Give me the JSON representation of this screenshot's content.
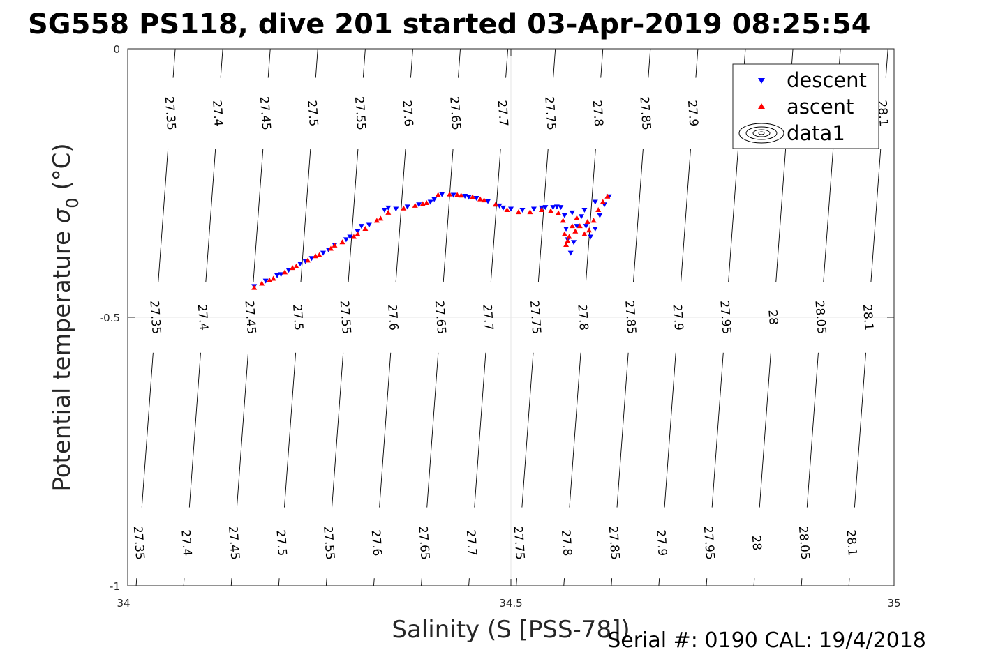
{
  "chart_data": {
    "type": "scatter",
    "title": "SG558 PS118, dive 201 started 03-Apr-2019 08:25:54",
    "xlabel": "Salinity (S [PSS-78])",
    "ylabel_main": "Potential temperature ",
    "ylabel_sigma": "σ",
    "ylabel_sub": "0",
    "ylabel_unit": " (°C)",
    "xlim": [
      34,
      35
    ],
    "ylim": [
      -1,
      0
    ],
    "xticks": [
      {
        "value": 34,
        "label": "34"
      },
      {
        "value": 34.5,
        "label": "34.5"
      },
      {
        "value": 35,
        "label": "35"
      }
    ],
    "yticks": [
      {
        "value": 0,
        "label": "0"
      },
      {
        "value": -0.5,
        "label": "-0.5"
      },
      {
        "value": -1,
        "label": "-1"
      }
    ],
    "grid": true,
    "legend_position": "top-right",
    "legend": [
      "descent",
      "ascent",
      "data1"
    ],
    "isopycnals": [
      {
        "label": "27.35",
        "s_top": 34.062,
        "s_bottom": 34.011
      },
      {
        "label": "27.4",
        "s_top": 34.124,
        "s_bottom": 34.073
      },
      {
        "label": "27.45",
        "s_top": 34.186,
        "s_bottom": 34.135
      },
      {
        "label": "27.5",
        "s_top": 34.248,
        "s_bottom": 34.197
      },
      {
        "label": "27.55",
        "s_top": 34.31,
        "s_bottom": 34.259
      },
      {
        "label": "27.6",
        "s_top": 34.372,
        "s_bottom": 34.321
      },
      {
        "label": "27.65",
        "s_top": 34.434,
        "s_bottom": 34.383
      },
      {
        "label": "27.7",
        "s_top": 34.496,
        "s_bottom": 34.445
      },
      {
        "label": "27.75",
        "s_top": 34.558,
        "s_bottom": 34.507
      },
      {
        "label": "27.8",
        "s_top": 34.62,
        "s_bottom": 34.569
      },
      {
        "label": "27.85",
        "s_top": 34.682,
        "s_bottom": 34.631
      },
      {
        "label": "27.9",
        "s_top": 34.744,
        "s_bottom": 34.693
      },
      {
        "label": "27.95",
        "s_top": 34.806,
        "s_bottom": 34.755
      },
      {
        "label": "28",
        "s_top": 34.868,
        "s_bottom": 34.817
      },
      {
        "label": "28.05",
        "s_top": 34.93,
        "s_bottom": 34.879
      },
      {
        "label": "28.1",
        "s_top": 34.992,
        "s_bottom": 34.941
      }
    ],
    "series": [
      {
        "name": "descent",
        "marker": "triangle-down",
        "color": "#0000ff",
        "points": [
          [
            34.165,
            -0.442
          ],
          [
            34.18,
            -0.432
          ],
          [
            34.195,
            -0.422
          ],
          [
            34.21,
            -0.412
          ],
          [
            34.225,
            -0.4
          ],
          [
            34.24,
            -0.39
          ],
          [
            34.255,
            -0.38
          ],
          [
            34.27,
            -0.365
          ],
          [
            34.285,
            -0.355
          ],
          [
            34.3,
            -0.34
          ],
          [
            34.315,
            -0.328
          ],
          [
            34.335,
            -0.3
          ],
          [
            34.35,
            -0.298
          ],
          [
            34.365,
            -0.294
          ],
          [
            34.38,
            -0.29
          ],
          [
            34.395,
            -0.285
          ],
          [
            34.41,
            -0.271
          ],
          [
            34.425,
            -0.272
          ],
          [
            34.44,
            -0.274
          ],
          [
            34.455,
            -0.278
          ],
          [
            34.47,
            -0.284
          ],
          [
            34.485,
            -0.292
          ],
          [
            34.5,
            -0.298
          ],
          [
            34.515,
            -0.3
          ],
          [
            34.53,
            -0.298
          ],
          [
            34.545,
            -0.295
          ],
          [
            34.555,
            -0.295
          ],
          [
            34.565,
            -0.295
          ],
          [
            34.57,
            -0.31
          ],
          [
            34.572,
            -0.335
          ],
          [
            34.574,
            -0.355
          ],
          [
            34.578,
            -0.38
          ],
          [
            34.582,
            -0.36
          ],
          [
            34.586,
            -0.33
          ],
          [
            34.592,
            -0.312
          ],
          [
            34.598,
            -0.33
          ],
          [
            34.604,
            -0.35
          ],
          [
            34.61,
            -0.335
          ],
          [
            34.616,
            -0.31
          ],
          [
            34.622,
            -0.29
          ],
          [
            34.628,
            -0.275
          ],
          [
            34.61,
            -0.285
          ],
          [
            34.596,
            -0.3
          ],
          [
            34.58,
            -0.305
          ],
          [
            34.56,
            -0.294
          ],
          [
            34.54,
            -0.296
          ],
          [
            34.49,
            -0.296
          ],
          [
            34.445,
            -0.276
          ],
          [
            34.4,
            -0.28
          ],
          [
            34.34,
            -0.296
          ],
          [
            34.305,
            -0.33
          ],
          [
            34.29,
            -0.35
          ],
          [
            34.262,
            -0.374
          ],
          [
            34.232,
            -0.396
          ],
          [
            34.2,
            -0.42
          ]
        ]
      },
      {
        "name": "ascent",
        "marker": "triangle-up",
        "color": "#ff0000",
        "points": [
          [
            34.165,
            -0.445
          ],
          [
            34.175,
            -0.437
          ],
          [
            34.19,
            -0.428
          ],
          [
            34.205,
            -0.416
          ],
          [
            34.22,
            -0.405
          ],
          [
            34.235,
            -0.394
          ],
          [
            34.25,
            -0.384
          ],
          [
            34.265,
            -0.372
          ],
          [
            34.28,
            -0.36
          ],
          [
            34.295,
            -0.35
          ],
          [
            34.31,
            -0.335
          ],
          [
            34.325,
            -0.32
          ],
          [
            34.34,
            -0.305
          ],
          [
            34.36,
            -0.297
          ],
          [
            34.375,
            -0.292
          ],
          [
            34.39,
            -0.287
          ],
          [
            34.405,
            -0.272
          ],
          [
            34.42,
            -0.271
          ],
          [
            34.435,
            -0.273
          ],
          [
            34.45,
            -0.276
          ],
          [
            34.465,
            -0.282
          ],
          [
            34.48,
            -0.29
          ],
          [
            34.495,
            -0.3
          ],
          [
            34.51,
            -0.304
          ],
          [
            34.525,
            -0.304
          ],
          [
            34.54,
            -0.3
          ],
          [
            34.552,
            -0.302
          ],
          [
            34.562,
            -0.306
          ],
          [
            34.568,
            -0.32
          ],
          [
            34.57,
            -0.345
          ],
          [
            34.572,
            -0.365
          ],
          [
            34.576,
            -0.35
          ],
          [
            34.58,
            -0.33
          ],
          [
            34.586,
            -0.315
          ],
          [
            34.59,
            -0.33
          ],
          [
            34.596,
            -0.345
          ],
          [
            34.602,
            -0.338
          ],
          [
            34.608,
            -0.32
          ],
          [
            34.614,
            -0.3
          ],
          [
            34.62,
            -0.285
          ],
          [
            34.626,
            -0.275
          ],
          [
            34.6,
            -0.322
          ],
          [
            34.584,
            -0.34
          ],
          [
            34.574,
            -0.358
          ],
          [
            34.46,
            -0.28
          ],
          [
            34.43,
            -0.272
          ],
          [
            34.385,
            -0.289
          ],
          [
            34.33,
            -0.316
          ],
          [
            34.3,
            -0.345
          ],
          [
            34.27,
            -0.366
          ],
          [
            34.245,
            -0.386
          ],
          [
            34.215,
            -0.408
          ],
          [
            34.185,
            -0.431
          ]
        ]
      }
    ]
  },
  "footer": {
    "serial": "Serial #: 0190  CAL: 19/4/2018"
  }
}
